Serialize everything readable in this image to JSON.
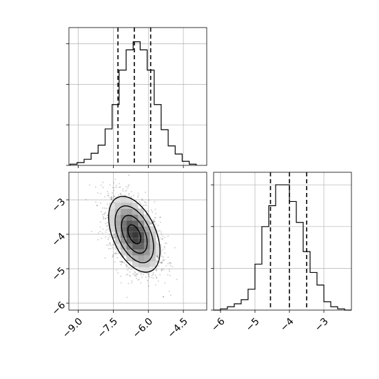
{
  "chart_data": [
    {
      "type": "histogram",
      "panel": "top-left",
      "variable_index": 0,
      "xlim": [
        -9.4,
        -3.5
      ],
      "ylim": [
        0,
        340
      ],
      "bins_x": [
        -9.35,
        -9.05,
        -8.75,
        -8.45,
        -8.15,
        -7.85,
        -7.55,
        -7.25,
        -6.95,
        -6.65,
        -6.35,
        -6.05,
        -5.75,
        -5.45,
        -5.15,
        -4.85,
        -4.55,
        -4.25,
        -3.95
      ],
      "counts": [
        3,
        7,
        15,
        30,
        50,
        90,
        150,
        235,
        285,
        305,
        285,
        235,
        150,
        88,
        48,
        28,
        10,
        3
      ],
      "quantile_lines": [
        -7.3,
        -6.6,
        -5.9
      ],
      "grid": true,
      "show_y_ticks_labels": false
    },
    {
      "type": "hist2d_contour",
      "panel": "bottom-left",
      "x_variable_index": 0,
      "y_variable_index": 1,
      "xlim": [
        -9.4,
        -3.5
      ],
      "ylim": [
        -6.2,
        -2.2
      ],
      "x_ticks": [
        "−9.0",
        "−7.5",
        "−6.0",
        "−4.5"
      ],
      "x_tick_values": [
        -9.0,
        -7.5,
        -6.0,
        -4.5
      ],
      "y_ticks": [
        "−6",
        "−5",
        "−4",
        "−3"
      ],
      "y_tick_values": [
        -6,
        -5,
        -4,
        -3
      ],
      "center": [
        -6.6,
        -4.0
      ],
      "sigma": [
        0.55,
        0.55
      ],
      "correlation": -0.45,
      "contour_levels_sigma": [
        0.5,
        1.0,
        1.5,
        2.0
      ],
      "grid": true
    },
    {
      "type": "histogram",
      "panel": "bottom-right",
      "variable_index": 1,
      "xlim": [
        -6.2,
        -2.2
      ],
      "ylim": [
        0,
        330
      ],
      "bins_x": [
        -6.2,
        -6.0,
        -5.8,
        -5.6,
        -5.4,
        -5.2,
        -5.0,
        -4.8,
        -4.6,
        -4.4,
        -4.2,
        -4.0,
        -3.8,
        -3.6,
        -3.4,
        -3.2,
        -3.0,
        -2.8,
        -2.6,
        -2.4,
        -2.2
      ],
      "counts": [
        0,
        3,
        8,
        15,
        25,
        50,
        110,
        200,
        250,
        300,
        300,
        260,
        210,
        140,
        90,
        60,
        20,
        8,
        3,
        0
      ],
      "quantile_lines": [
        -4.55,
        -4.0,
        -3.5
      ],
      "x_ticks": [
        "−6",
        "−5",
        "−4",
        "−3"
      ],
      "x_tick_values": [
        -6,
        -5,
        -4,
        -3
      ],
      "grid": true,
      "show_y_ticks_labels": false
    }
  ],
  "colors": {
    "line": "#000000",
    "grid": "#b0b0b0",
    "density": "#000000"
  }
}
